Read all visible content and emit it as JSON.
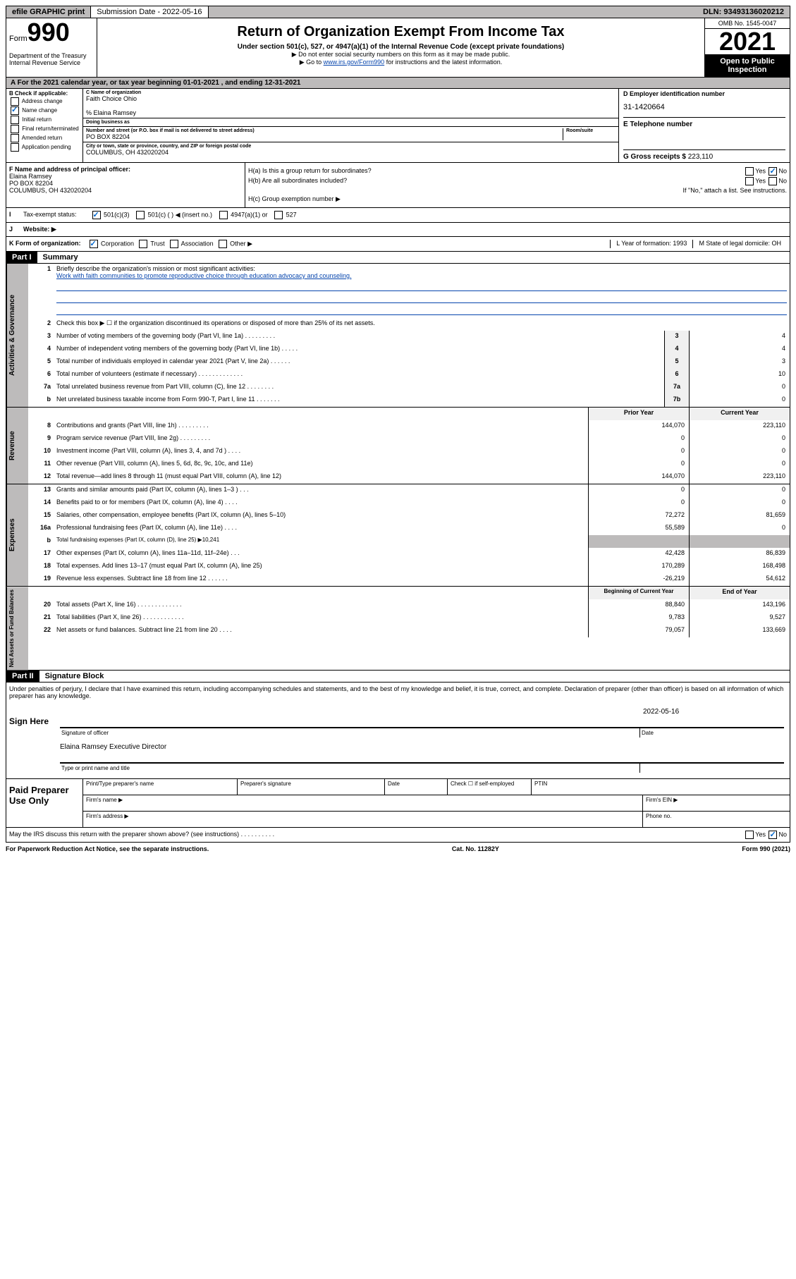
{
  "topbar": {
    "efile": "efile GRAPHIC print",
    "submission": "Submission Date - 2022-05-16",
    "dln": "DLN: 93493136020212"
  },
  "header": {
    "form_label": "Form",
    "form_num": "990",
    "title": "Return of Organization Exempt From Income Tax",
    "subtitle": "Under section 501(c), 527, or 4947(a)(1) of the Internal Revenue Code (except private foundations)",
    "note1": "▶ Do not enter social security numbers on this form as it may be made public.",
    "note2_pre": "▶ Go to ",
    "note2_link": "www.irs.gov/Form990",
    "note2_post": " for instructions and the latest information.",
    "dept": "Department of the Treasury\nInternal Revenue Service",
    "omb": "OMB No. 1545-0047",
    "year": "2021",
    "open": "Open to Public Inspection"
  },
  "period": {
    "text": "For the 2021 calendar year, or tax year beginning 01-01-2021    , and ending 12-31-2021"
  },
  "sectionB": {
    "label": "B Check if applicable:",
    "opts": [
      "Address change",
      "Name change",
      "Initial return",
      "Final return/terminated",
      "Amended return",
      "Application pending"
    ],
    "checked_idx": 1
  },
  "sectionC": {
    "name_label": "C Name of organization",
    "name": "Faith Choice Ohio",
    "care_of": "% Elaina Ramsey",
    "dba_label": "Doing business as",
    "street_label": "Number and street (or P.O. box if mail is not delivered to street address)",
    "room_label": "Room/suite",
    "street": "PO BOX 82204",
    "city_label": "City or town, state or province, country, and ZIP or foreign postal code",
    "city": "COLUMBUS, OH  432020204"
  },
  "sectionD": {
    "label": "D Employer identification number",
    "ein": "31-1420664",
    "phone_label": "E Telephone number",
    "gross_label": "G Gross receipts $",
    "gross": "223,110"
  },
  "sectionF": {
    "label": "F Name and address of principal officer:",
    "name": "Elaina Ramsey",
    "street": "PO BOX 82204",
    "city": "COLUMBUS, OH  432020204"
  },
  "sectionH": {
    "a_label": "H(a)  Is this a group return for subordinates?",
    "b_label": "H(b)  Are all subordinates included?",
    "note": "If \"No,\" attach a list. See instructions.",
    "c_label": "H(c)  Group exemption number ▶"
  },
  "sectionI": {
    "label": "Tax-exempt status:",
    "o1": "501(c)(3)",
    "o2": "501(c) (   ) ◀ (insert no.)",
    "o3": "4947(a)(1) or",
    "o4": "527"
  },
  "sectionJ": {
    "label": "Website: ▶"
  },
  "sectionK": {
    "label": "K Form of organization:",
    "opts": [
      "Corporation",
      "Trust",
      "Association",
      "Other ▶"
    ],
    "L": "L Year of formation: 1993",
    "M": "M State of legal domicile: OH"
  },
  "part1": {
    "header": "Part I",
    "title": "Summary",
    "q1": "Briefly describe the organization's mission or most significant activities:",
    "mission": "Work with faith communities to promote reproductive choice through education advocacy and counseling.",
    "q2": "Check this box ▶ ☐  if the organization discontinued its operations or disposed of more than 25% of its net assets.",
    "rows_gov": [
      {
        "n": "3",
        "t": "Number of voting members of the governing body (Part VI, line 1a)   .    .    .    .    .    .    .    .    .",
        "box": "3",
        "v": "4"
      },
      {
        "n": "4",
        "t": "Number of independent voting members of the governing body (Part VI, line 1b)   .    .    .    .    .",
        "box": "4",
        "v": "4"
      },
      {
        "n": "5",
        "t": "Total number of individuals employed in calendar year 2021 (Part V, line 2a)   .    .    .    .    .    .",
        "box": "5",
        "v": "3"
      },
      {
        "n": "6",
        "t": "Total number of volunteers (estimate if necessary)   .    .    .    .    .    .    .    .    .    .    .    .    .",
        "box": "6",
        "v": "10"
      },
      {
        "n": "7a",
        "t": "Total unrelated business revenue from Part VIII, column (C), line 12   .    .    .    .    .    .    .    .",
        "box": "7a",
        "v": "0"
      },
      {
        "n": "b",
        "t": "Net unrelated business taxable income from Form 990-T, Part I, line 11   .    .    .    .    .    .    .",
        "box": "7b",
        "v": "0"
      }
    ],
    "col_prior": "Prior Year",
    "col_current": "Current Year",
    "rows_rev": [
      {
        "n": "8",
        "t": "Contributions and grants (Part VIII, line 1h)   .    .    .    .    .    .    .    .    .",
        "p": "144,070",
        "c": "223,110"
      },
      {
        "n": "9",
        "t": "Program service revenue (Part VIII, line 2g)   .    .    .    .    .    .    .    .    .",
        "p": "0",
        "c": "0"
      },
      {
        "n": "10",
        "t": "Investment income (Part VIII, column (A), lines 3, 4, and 7d )   .    .    .    .",
        "p": "0",
        "c": "0"
      },
      {
        "n": "11",
        "t": "Other revenue (Part VIII, column (A), lines 5, 6d, 8c, 9c, 10c, and 11e)",
        "p": "0",
        "c": "0"
      },
      {
        "n": "12",
        "t": "Total revenue—add lines 8 through 11 (must equal Part VIII, column (A), line 12)",
        "p": "144,070",
        "c": "223,110"
      }
    ],
    "rows_exp": [
      {
        "n": "13",
        "t": "Grants and similar amounts paid (Part IX, column (A), lines 1–3 )   .    .    .",
        "p": "0",
        "c": "0"
      },
      {
        "n": "14",
        "t": "Benefits paid to or for members (Part IX, column (A), line 4)   .    .    .    .",
        "p": "0",
        "c": "0"
      },
      {
        "n": "15",
        "t": "Salaries, other compensation, employee benefits (Part IX, column (A), lines 5–10)",
        "p": "72,272",
        "c": "81,659"
      },
      {
        "n": "16a",
        "t": "Professional fundraising fees (Part IX, column (A), line 11e)   .    .    .    .",
        "p": "55,589",
        "c": "0"
      },
      {
        "n": "b",
        "t": "Total fundraising expenses (Part IX, column (D), line 25) ▶10,241",
        "grey": true
      },
      {
        "n": "17",
        "t": "Other expenses (Part IX, column (A), lines 11a–11d, 11f–24e)   .    .    .",
        "p": "42,428",
        "c": "86,839"
      },
      {
        "n": "18",
        "t": "Total expenses. Add lines 13–17 (must equal Part IX, column (A), line 25)",
        "p": "170,289",
        "c": "168,498"
      },
      {
        "n": "19",
        "t": "Revenue less expenses. Subtract line 18 from line 12   .    .    .    .    .    .",
        "p": "-26,219",
        "c": "54,612"
      }
    ],
    "col_begin": "Beginning of Current Year",
    "col_end": "End of Year",
    "rows_net": [
      {
        "n": "20",
        "t": "Total assets (Part X, line 16)   .    .    .    .    .    .    .    .    .    .    .    .    .",
        "p": "88,840",
        "c": "143,196"
      },
      {
        "n": "21",
        "t": "Total liabilities (Part X, line 26)   .    .    .    .    .    .    .    .    .    .    .    .",
        "p": "9,783",
        "c": "9,527"
      },
      {
        "n": "22",
        "t": "Net assets or fund balances. Subtract line 21 from line 20   .    .    .    .",
        "p": "79,057",
        "c": "133,669"
      }
    ],
    "side_labels": {
      "gov": "Activities & Governance",
      "rev": "Revenue",
      "exp": "Expenses",
      "net": "Net Assets or Fund Balances"
    }
  },
  "part2": {
    "header": "Part II",
    "title": "Signature Block",
    "penalties": "Under penalties of perjury, I declare that I have examined this return, including accompanying schedules and statements, and to the best of my knowledge and belief, it is true, correct, and complete. Declaration of preparer (other than officer) is based on all information of which preparer has any knowledge.",
    "sign_here": "Sign Here",
    "sig_officer": "Signature of officer",
    "date": "Date",
    "sig_date": "2022-05-16",
    "sig_name": "Elaina Ramsey  Executive Director",
    "name_title": "Type or print name and title",
    "paid": "Paid Preparer Use Only",
    "prep_name": "Print/Type preparer's name",
    "prep_sig": "Preparer's signature",
    "prep_date": "Date",
    "check_self": "Check ☐ if self-employed",
    "ptin": "PTIN",
    "firm_name": "Firm's name      ▶",
    "firm_ein": "Firm's EIN ▶",
    "firm_addr": "Firm's address ▶",
    "phone": "Phone no.",
    "may_irs": "May the IRS discuss this return with the preparer shown above? (see instructions)   .    .    .    .    .    .    .    .    .    ."
  },
  "footer": {
    "left": "For Paperwork Reduction Act Notice, see the separate instructions.",
    "center": "Cat. No. 11282Y",
    "right": "Form 990 (2021)"
  }
}
